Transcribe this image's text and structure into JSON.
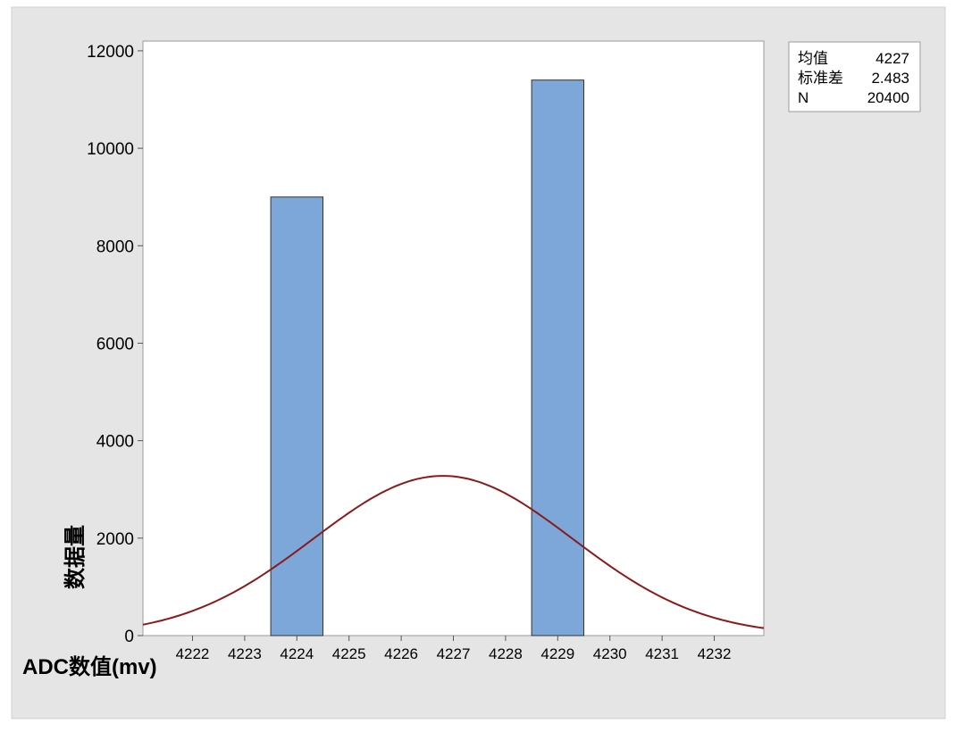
{
  "chart_data": {
    "type": "bar",
    "xlabel": "ADC数值(mv)",
    "ylabel": "数据量",
    "x_ticks": [
      4222,
      4223,
      4224,
      4225,
      4226,
      4227,
      4228,
      4229,
      4230,
      4231,
      4232
    ],
    "y_ticks": [
      0,
      2000,
      4000,
      6000,
      8000,
      10000,
      12000
    ],
    "xlim": [
      4221.05,
      4232.95
    ],
    "ylim": [
      0,
      12200
    ],
    "bins": [
      {
        "x_start": 4223.5,
        "x_end": 4224.5,
        "count": 9000
      },
      {
        "x_start": 4224.5,
        "x_end": 4225.5,
        "count": 0
      },
      {
        "x_start": 4225.5,
        "x_end": 4226.5,
        "count": 0
      },
      {
        "x_start": 4226.5,
        "x_end": 4227.5,
        "count": 0
      },
      {
        "x_start": 4227.5,
        "x_end": 4228.5,
        "count": 0
      },
      {
        "x_start": 4228.5,
        "x_end": 4229.5,
        "count": 11400
      }
    ],
    "fit_curve": {
      "type": "normal",
      "mean": 4226.8,
      "stdev": 2.483,
      "n": 20400,
      "bin_width": 1
    },
    "stats": [
      {
        "label": "均值",
        "value": "4227"
      },
      {
        "label": "标准差",
        "value": "2.483"
      },
      {
        "label": "N",
        "value": "20400"
      }
    ],
    "colors": {
      "background": "#e5e5e5",
      "plot_area": "#ffffff",
      "bar_fill": "#7da7d9",
      "bar_stroke": "#333333",
      "curve": "#8b1a1a"
    },
    "grid": false
  }
}
